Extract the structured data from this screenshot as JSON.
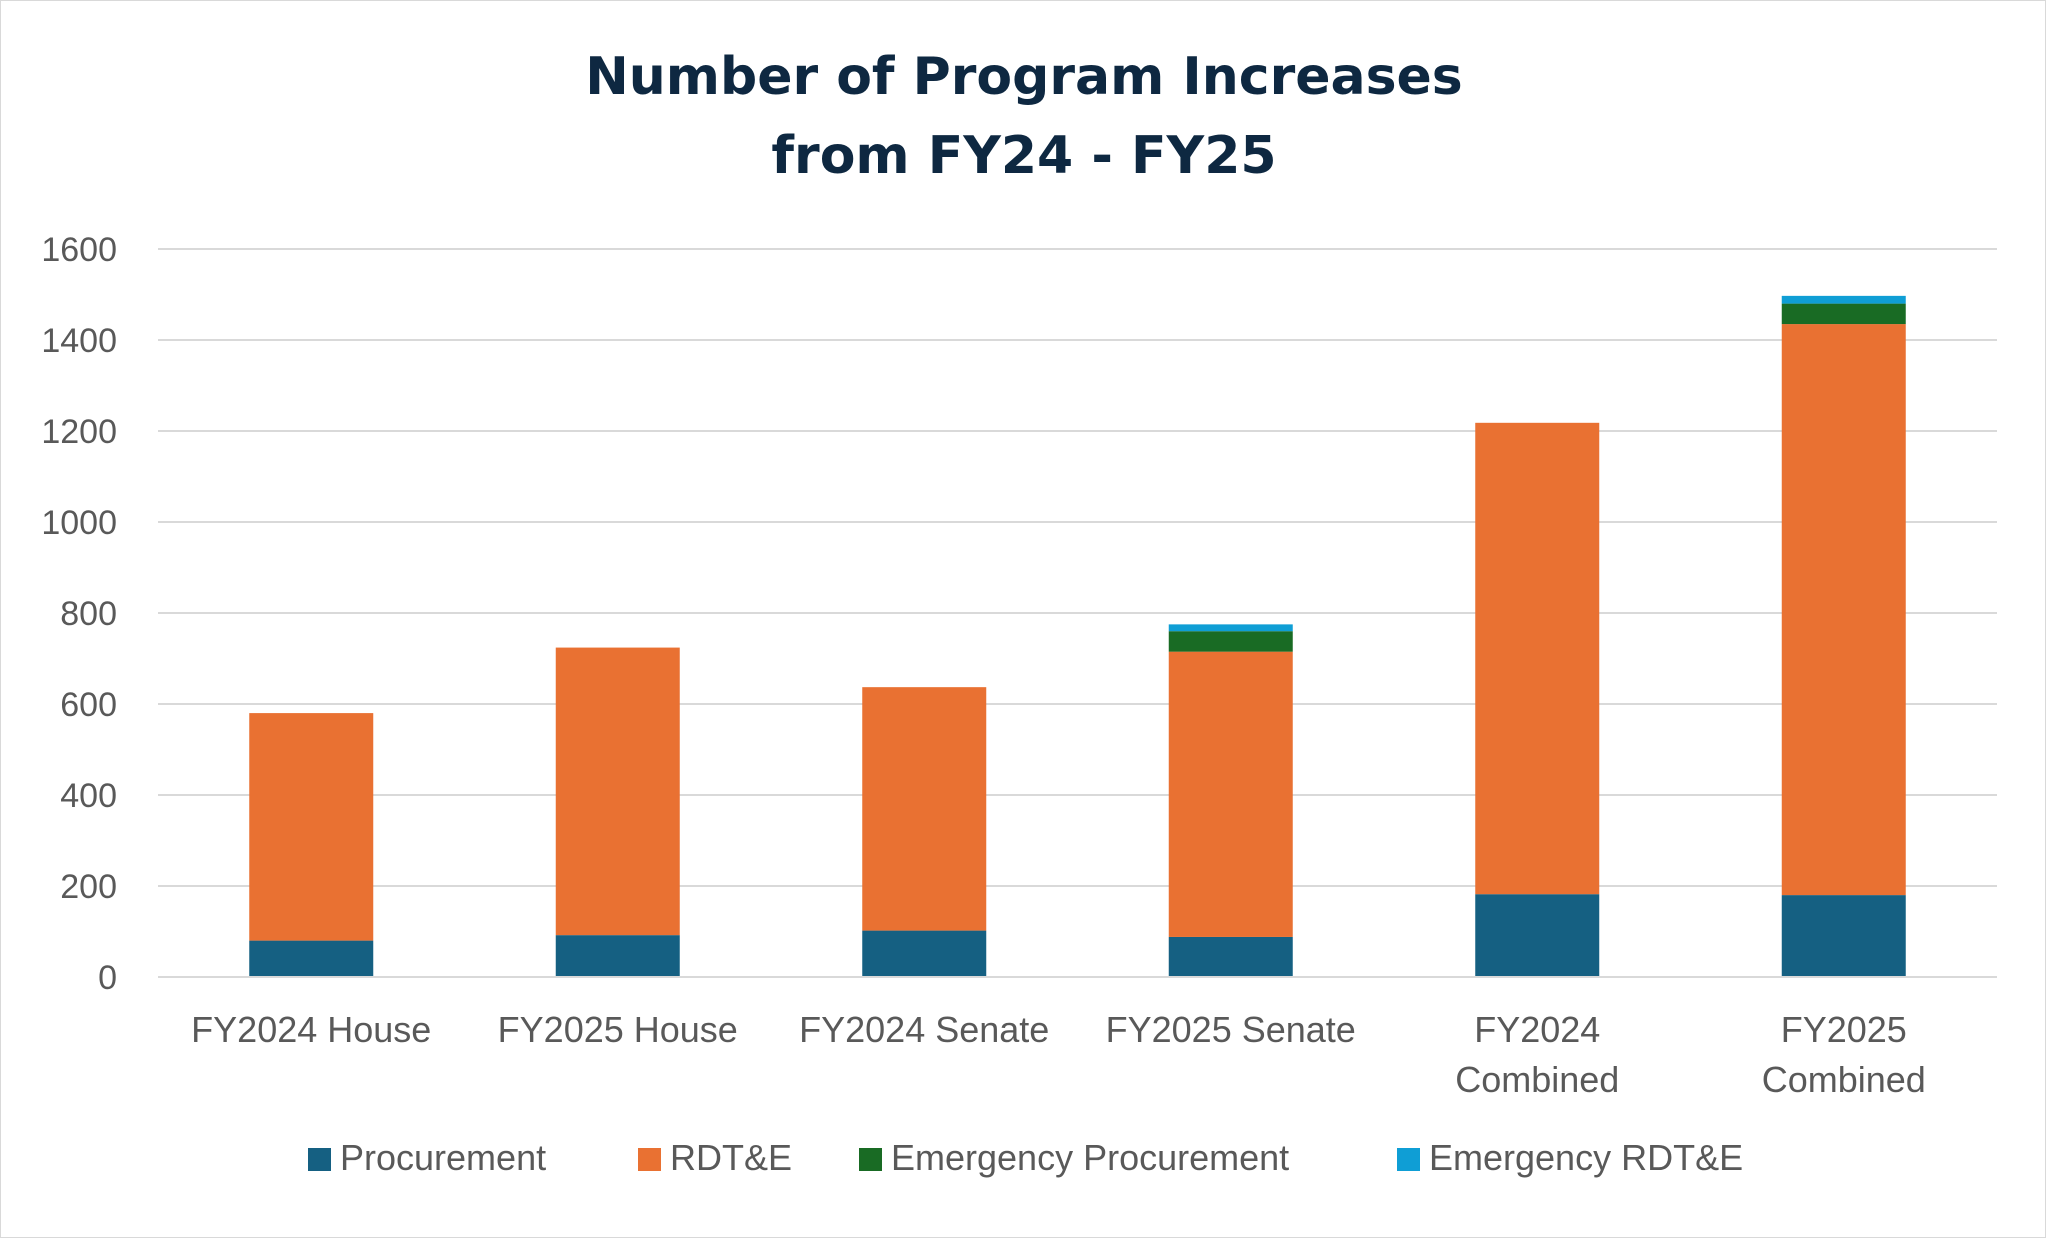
{
  "chart_data": {
    "type": "bar",
    "stacked": true,
    "title": [
      "Number of Program Increases",
      "from FY24 - FY25"
    ],
    "categories": [
      [
        "FY2024 House"
      ],
      [
        "FY2025 House"
      ],
      [
        "FY2024 Senate"
      ],
      [
        "FY2025 Senate"
      ],
      [
        "FY2024",
        "Combined"
      ],
      [
        "FY2025",
        "Combined"
      ]
    ],
    "series": [
      {
        "name": "Procurement",
        "color": "#156082",
        "values": [
          80,
          92,
          102,
          88,
          182,
          180
        ]
      },
      {
        "name": "RDT&E",
        "color": "#e97132",
        "values": [
          500,
          632,
          535,
          627,
          1036,
          1255
        ]
      },
      {
        "name": "Emergency Procurement",
        "color": "#196b24",
        "values": [
          0,
          0,
          0,
          45,
          0,
          45
        ]
      },
      {
        "name": "Emergency RDT&E",
        "color": "#0f9ed5",
        "values": [
          0,
          0,
          0,
          15,
          0,
          17
        ]
      }
    ],
    "ylim": [
      0,
      1600
    ],
    "yticks": [
      0,
      200,
      400,
      600,
      800,
      1000,
      1200,
      1400,
      1600
    ],
    "grid": true,
    "legend": "bottom"
  }
}
